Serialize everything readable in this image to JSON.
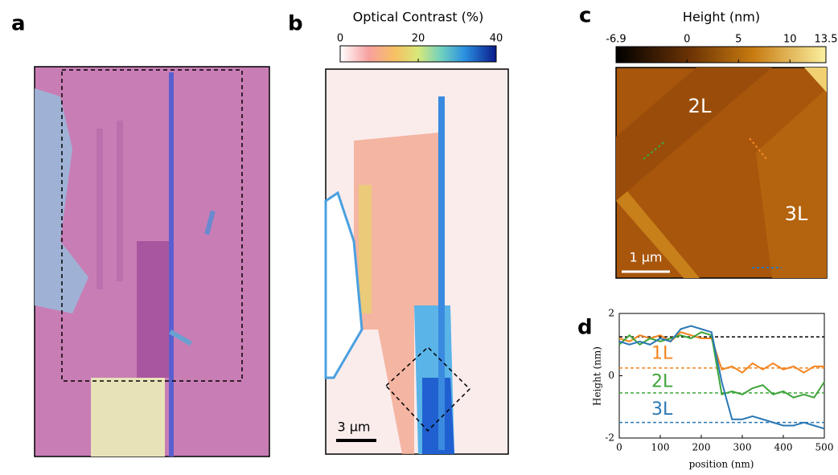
{
  "panels": {
    "a": {
      "label": "a"
    },
    "b": {
      "label": "b",
      "colorbar_title": "Optical Contrast (%)",
      "clim": [
        0,
        40
      ],
      "cticks": [
        0,
        20,
        40
      ],
      "scale_bar": "3 µm"
    },
    "c": {
      "label": "c",
      "colorbar_title": "Height (nm)",
      "clim": [
        -6.9,
        13.5
      ],
      "cticks": [
        -6.9,
        0,
        5,
        10,
        13.5
      ],
      "region_labels": [
        "2L",
        "3L"
      ],
      "scale_bar": "1 µm"
    },
    "d": {
      "label": "d"
    }
  },
  "chart_data": {
    "type": "line",
    "xlabel": "position (nm)",
    "ylabel": "Height (nm)",
    "x": [
      0,
      25,
      50,
      75,
      100,
      125,
      150,
      175,
      200,
      225,
      250,
      275,
      300,
      325,
      350,
      375,
      400,
      425,
      450,
      475,
      500
    ],
    "xlim": [
      0,
      500
    ],
    "xticks": [
      0,
      100,
      200,
      300,
      400,
      500
    ],
    "ylim": [
      -2,
      2
    ],
    "yticks": [
      -2,
      0,
      2
    ],
    "series": [
      {
        "name": "1L",
        "color": "#f28522",
        "values": [
          1.2,
          1.1,
          1.3,
          1.2,
          1.3,
          1.1,
          1.4,
          1.3,
          1.2,
          1.2,
          0.2,
          0.3,
          0.1,
          0.4,
          0.2,
          0.4,
          0.2,
          0.3,
          0.1,
          0.3,
          0.3
        ]
      },
      {
        "name": "2L",
        "color": "#3fa53b",
        "values": [
          1.0,
          1.3,
          1.0,
          1.2,
          1.1,
          1.2,
          1.3,
          1.2,
          1.4,
          1.3,
          -0.6,
          -0.5,
          -0.6,
          -0.4,
          -0.3,
          -0.6,
          -0.5,
          -0.7,
          -0.6,
          -0.7,
          -0.2
        ]
      },
      {
        "name": "3L",
        "color": "#2a78b5",
        "values": [
          1.1,
          1.0,
          1.1,
          1.0,
          1.2,
          1.1,
          1.5,
          1.6,
          1.5,
          1.4,
          -0.2,
          -1.4,
          -1.4,
          -1.3,
          -1.4,
          -1.5,
          -1.6,
          -1.6,
          -1.5,
          -1.6,
          -1.7
        ]
      }
    ],
    "reference_lines": [
      {
        "value": 1.25,
        "color": "#000000"
      },
      {
        "value": 0.25,
        "color": "#f28522"
      },
      {
        "value": -0.55,
        "color": "#3fa53b"
      },
      {
        "value": -1.5,
        "color": "#2a78b5"
      }
    ]
  }
}
